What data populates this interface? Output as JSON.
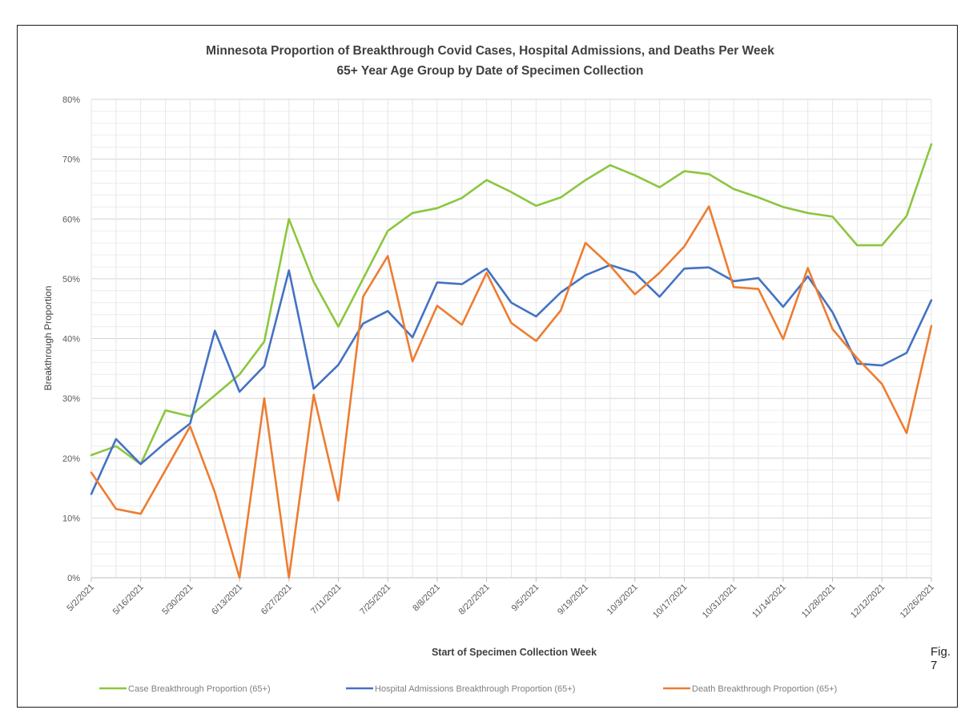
{
  "chart_data": {
    "type": "line",
    "title": "Minnesota Proportion of Breakthrough Covid Cases, Hospital Admissions, and Deaths Per Week",
    "subtitle": "65+ Year Age Group by Date of Specimen Collection",
    "xlabel": "Start of Specimen Collection Week",
    "ylabel": "Breakthrough Proportion",
    "ylim": [
      0,
      80
    ],
    "y_ticks": [
      "0%",
      "10%",
      "20%",
      "30%",
      "40%",
      "50%",
      "60%",
      "70%",
      "80%"
    ],
    "grid": true,
    "legend_position": "bottom",
    "x_tick_labels": [
      "5/2/2021",
      "5/16/2021",
      "5/30/2021",
      "6/13/2021",
      "6/27/2021",
      "7/11/2021",
      "7/25/2021",
      "8/8/2021",
      "8/22/2021",
      "9/5/2021",
      "9/19/2021",
      "10/3/2021",
      "10/17/2021",
      "10/31/2021",
      "11/14/2021",
      "11/28/2021",
      "12/12/2021",
      "12/26/2021"
    ],
    "n_weeks": 35,
    "series": [
      {
        "name": "Case Breakthrough Proportion (65+)",
        "color": "#8cc63f",
        "values": [
          20.5,
          22.0,
          19.0,
          28.0,
          27.0,
          30.5,
          34.0,
          39.5,
          60.0,
          49.5,
          42.0,
          50.0,
          58.0,
          61.0,
          61.8,
          63.5,
          66.5,
          64.5,
          62.2,
          63.6,
          66.5,
          69.0,
          67.3,
          65.3,
          68.0,
          67.5,
          65.0,
          63.6,
          62.0,
          61.0,
          60.4,
          55.6,
          55.6,
          60.5,
          72.5
        ]
      },
      {
        "name": "Hospital Admissions Breakthrough Proportion (65+)",
        "color": "#4472c4",
        "values": [
          14.0,
          23.2,
          19.0,
          22.6,
          25.8,
          41.3,
          31.1,
          35.4,
          51.4,
          31.6,
          35.6,
          42.5,
          44.6,
          40.2,
          49.4,
          49.1,
          51.7,
          46.0,
          43.7,
          47.7,
          50.6,
          52.3,
          51.0,
          47.0,
          51.7,
          51.9,
          49.6,
          50.1,
          45.3,
          50.4,
          44.4,
          35.8,
          35.5,
          37.6,
          46.4
        ]
      },
      {
        "name": "Death Breakthrough Proportion (65+)",
        "color": "#ed7d31",
        "values": [
          17.6,
          11.5,
          10.7,
          18.0,
          25.3,
          14.3,
          0.0,
          30.0,
          0.0,
          30.6,
          12.9,
          47.0,
          53.8,
          36.2,
          45.5,
          42.3,
          51.0,
          42.6,
          39.6,
          44.7,
          56.0,
          52.2,
          47.4,
          51.0,
          55.4,
          62.1,
          48.6,
          48.3,
          39.9,
          51.8,
          41.6,
          36.7,
          32.4,
          24.2,
          42.1
        ]
      }
    ]
  },
  "figure_label": "Fig. 7"
}
